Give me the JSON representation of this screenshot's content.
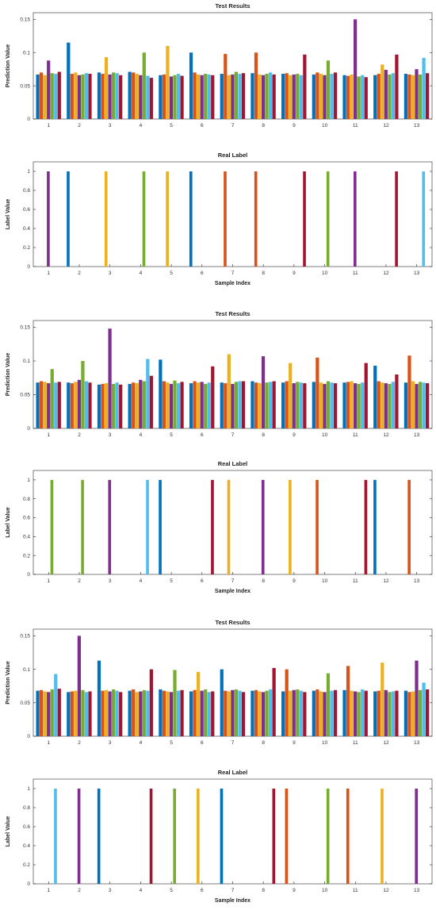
{
  "colors": [
    "#0072BD",
    "#D95319",
    "#EDB120",
    "#7E2F8E",
    "#77AC30",
    "#4DBEEE",
    "#A2142F"
  ],
  "chart_data": [
    {
      "type": "bar",
      "title": "Test Results",
      "ylabel": "Prediction Value",
      "xlabel": "",
      "categories": [
        "1",
        "2",
        "3",
        "4",
        "5",
        "6",
        "7",
        "8",
        "9",
        "10",
        "11",
        "12",
        "13"
      ],
      "ylim": [
        0,
        0.16
      ],
      "yticks": [
        "0",
        "0.05",
        "0.1",
        "0.15"
      ],
      "ytick_values": [
        0,
        0.05,
        0.1,
        0.15
      ],
      "grid": false,
      "bars_per_sample": 7,
      "values": [
        [
          0.067,
          0.07,
          0.066,
          0.088,
          0.069,
          0.068,
          0.071
        ],
        [
          0.115,
          0.068,
          0.07,
          0.066,
          0.067,
          0.069,
          0.068
        ],
        [
          0.07,
          0.068,
          0.093,
          0.067,
          0.07,
          0.069,
          0.066
        ],
        [
          0.071,
          0.07,
          0.068,
          0.066,
          0.1,
          0.065,
          0.062
        ],
        [
          0.066,
          0.067,
          0.11,
          0.064,
          0.066,
          0.068,
          0.065
        ],
        [
          0.1,
          0.07,
          0.067,
          0.066,
          0.068,
          0.067,
          0.066
        ],
        [
          0.068,
          0.098,
          0.066,
          0.067,
          0.071,
          0.068,
          0.069
        ],
        [
          0.069,
          0.1,
          0.067,
          0.066,
          0.068,
          0.07,
          0.067
        ],
        [
          0.068,
          0.069,
          0.066,
          0.067,
          0.068,
          0.066,
          0.097
        ],
        [
          0.067,
          0.07,
          0.068,
          0.066,
          0.088,
          0.068,
          0.07
        ],
        [
          0.066,
          0.065,
          0.067,
          0.15,
          0.064,
          0.066,
          0.063
        ],
        [
          0.066,
          0.068,
          0.082,
          0.074,
          0.067,
          0.069,
          0.097
        ],
        [
          0.068,
          0.067,
          0.066,
          0.075,
          0.067,
          0.092,
          0.069
        ]
      ]
    },
    {
      "type": "bar",
      "title": "Real Label",
      "ylabel": "Label Value",
      "xlabel": "Sample Index",
      "categories": [
        "1",
        "2",
        "3",
        "4",
        "5",
        "6",
        "7",
        "8",
        "9",
        "10",
        "11",
        "12",
        "13"
      ],
      "ylim": [
        0,
        1.1
      ],
      "yticks": [
        "0",
        "0.2",
        "0.4",
        "0.6",
        "0.8",
        "1"
      ],
      "ytick_values": [
        0,
        0.2,
        0.4,
        0.6,
        0.8,
        1
      ],
      "grid": false,
      "bars_per_sample": 7,
      "labels": [
        3,
        0,
        2,
        4,
        2,
        0,
        1,
        1,
        6,
        4,
        3,
        6,
        5
      ]
    },
    {
      "type": "bar",
      "title": "Test Results",
      "ylabel": "Prediction Value",
      "xlabel": "",
      "categories": [
        "1",
        "2",
        "3",
        "4",
        "5",
        "6",
        "7",
        "8",
        "9",
        "10",
        "11",
        "12",
        "13"
      ],
      "ylim": [
        0,
        0.16
      ],
      "yticks": [
        "0",
        "0.05",
        "0.1",
        "0.15"
      ],
      "ytick_values": [
        0,
        0.05,
        0.1,
        0.15
      ],
      "grid": false,
      "bars_per_sample": 7,
      "values": [
        [
          0.068,
          0.07,
          0.069,
          0.067,
          0.088,
          0.068,
          0.069
        ],
        [
          0.068,
          0.067,
          0.069,
          0.072,
          0.1,
          0.07,
          0.068
        ],
        [
          0.065,
          0.066,
          0.067,
          0.148,
          0.066,
          0.068,
          0.065
        ],
        [
          0.066,
          0.068,
          0.067,
          0.072,
          0.07,
          0.103,
          0.078
        ],
        [
          0.102,
          0.07,
          0.068,
          0.066,
          0.071,
          0.067,
          0.069
        ],
        [
          0.067,
          0.07,
          0.068,
          0.069,
          0.066,
          0.068,
          0.092
        ],
        [
          0.068,
          0.067,
          0.11,
          0.066,
          0.069,
          0.07,
          0.07
        ],
        [
          0.07,
          0.068,
          0.067,
          0.107,
          0.068,
          0.069,
          0.07
        ],
        [
          0.068,
          0.07,
          0.097,
          0.067,
          0.069,
          0.068,
          0.067
        ],
        [
          0.069,
          0.105,
          0.068,
          0.066,
          0.07,
          0.068,
          0.067
        ],
        [
          0.068,
          0.069,
          0.07,
          0.067,
          0.066,
          0.068,
          0.097
        ],
        [
          0.093,
          0.07,
          0.068,
          0.067,
          0.066,
          0.069,
          0.08
        ],
        [
          0.068,
          0.108,
          0.07,
          0.066,
          0.069,
          0.068,
          0.067
        ]
      ]
    },
    {
      "type": "bar",
      "title": "Real Label",
      "ylabel": "Label Value",
      "xlabel": "Sample Index",
      "categories": [
        "1",
        "2",
        "3",
        "4",
        "5",
        "6",
        "7",
        "8",
        "9",
        "10",
        "11",
        "12",
        "13"
      ],
      "ylim": [
        0,
        1.1
      ],
      "yticks": [
        "0",
        "0.2",
        "0.4",
        "0.6",
        "0.8",
        "1"
      ],
      "ytick_values": [
        0,
        0.2,
        0.4,
        0.6,
        0.8,
        1
      ],
      "grid": false,
      "bars_per_sample": 7,
      "labels": [
        4,
        4,
        3,
        5,
        0,
        6,
        2,
        3,
        2,
        1,
        6,
        0,
        1
      ]
    },
    {
      "type": "bar",
      "title": "Test Results",
      "ylabel": "Prediction Value",
      "xlabel": "",
      "categories": [
        "1",
        "2",
        "3",
        "4",
        "5",
        "6",
        "7",
        "8",
        "9",
        "10",
        "11",
        "12",
        "13"
      ],
      "ylim": [
        0,
        0.16
      ],
      "yticks": [
        "0",
        "0.05",
        "0.1",
        "0.15"
      ],
      "ytick_values": [
        0,
        0.05,
        0.1,
        0.15
      ],
      "grid": false,
      "bars_per_sample": 7,
      "values": [
        [
          0.068,
          0.069,
          0.067,
          0.066,
          0.07,
          0.093,
          0.071
        ],
        [
          0.066,
          0.067,
          0.068,
          0.15,
          0.069,
          0.066,
          0.067
        ],
        [
          0.113,
          0.068,
          0.069,
          0.067,
          0.07,
          0.068,
          0.066
        ],
        [
          0.068,
          0.07,
          0.066,
          0.067,
          0.069,
          0.068,
          0.1
        ],
        [
          0.07,
          0.068,
          0.067,
          0.066,
          0.099,
          0.068,
          0.069
        ],
        [
          0.067,
          0.069,
          0.096,
          0.068,
          0.07,
          0.066,
          0.067
        ],
        [
          0.1,
          0.068,
          0.067,
          0.069,
          0.07,
          0.068,
          0.066
        ],
        [
          0.068,
          0.069,
          0.067,
          0.066,
          0.068,
          0.07,
          0.102
        ],
        [
          0.067,
          0.1,
          0.068,
          0.069,
          0.07,
          0.068,
          0.066
        ],
        [
          0.068,
          0.07,
          0.067,
          0.066,
          0.094,
          0.068,
          0.069
        ],
        [
          0.069,
          0.105,
          0.068,
          0.067,
          0.066,
          0.07,
          0.068
        ],
        [
          0.067,
          0.068,
          0.11,
          0.069,
          0.066,
          0.067,
          0.068
        ],
        [
          0.068,
          0.066,
          0.067,
          0.113,
          0.069,
          0.08,
          0.07
        ]
      ]
    },
    {
      "type": "bar",
      "title": "Real Label",
      "ylabel": "Label Value",
      "xlabel": "Sample Index",
      "categories": [
        "1",
        "2",
        "3",
        "4",
        "5",
        "6",
        "7",
        "8",
        "9",
        "10",
        "11",
        "12",
        "13"
      ],
      "ylim": [
        0,
        1.1
      ],
      "yticks": [
        "0",
        "0.2",
        "0.4",
        "0.6",
        "0.8",
        "1"
      ],
      "ytick_values": [
        0,
        0.2,
        0.4,
        0.6,
        0.8,
        1
      ],
      "grid": false,
      "bars_per_sample": 7,
      "labels": [
        5,
        3,
        0,
        6,
        4,
        2,
        0,
        6,
        1,
        4,
        1,
        2,
        3
      ]
    }
  ]
}
